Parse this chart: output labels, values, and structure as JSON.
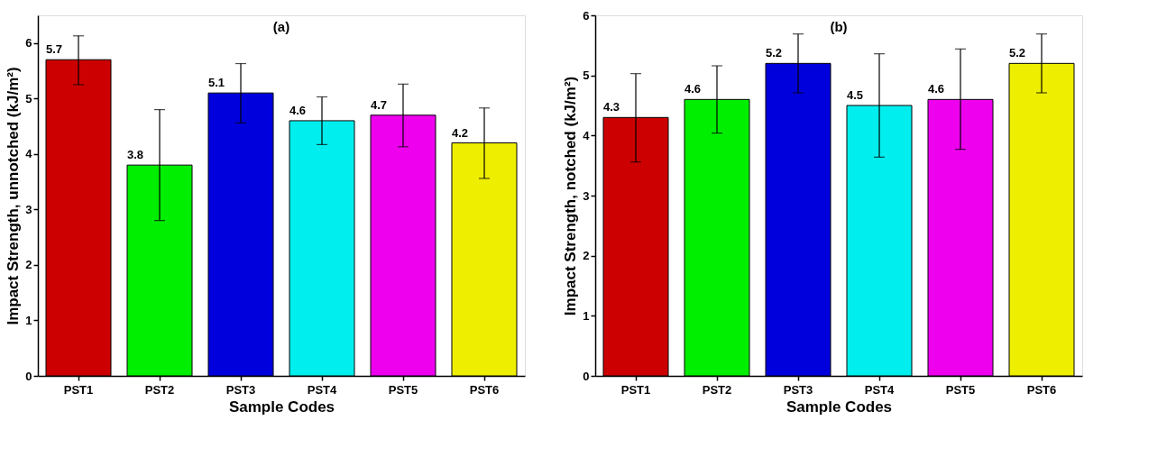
{
  "chart_data": [
    {
      "type": "bar",
      "title": "(a)",
      "xlabel": "Sample Codes",
      "ylabel": "Impact Strength, unnotched (kJ/m²)",
      "categories": [
        "PST1",
        "PST2",
        "PST3",
        "PST4",
        "PST5",
        "PST6"
      ],
      "values": [
        5.7,
        3.8,
        5.1,
        4.6,
        4.7,
        4.2
      ],
      "errors": [
        [
          5.25,
          6.13
        ],
        [
          2.8,
          4.8
        ],
        [
          4.56,
          5.63
        ],
        [
          4.17,
          5.03
        ],
        [
          4.13,
          5.26
        ],
        [
          3.56,
          4.83
        ]
      ],
      "colors": [
        "#cc0000",
        "#00ee00",
        "#0000dd",
        "#00eeee",
        "#ee00ee",
        "#eeee00"
      ],
      "ylim": [
        0,
        6.5
      ],
      "yticks": [
        0,
        1,
        2,
        3,
        4,
        5,
        6
      ],
      "data_labels": true,
      "grid": false,
      "legend": false
    },
    {
      "type": "bar",
      "title": "(b)",
      "xlabel": "Sample Codes",
      "ylabel": "Impact Strength, notched (kJ/m²)",
      "categories": [
        "PST1",
        "PST2",
        "PST3",
        "PST4",
        "PST5",
        "PST6"
      ],
      "values": [
        4.3,
        4.6,
        5.2,
        4.5,
        4.6,
        5.2
      ],
      "errors": [
        [
          3.56,
          5.03
        ],
        [
          4.04,
          5.16
        ],
        [
          4.71,
          5.69
        ],
        [
          3.64,
          5.36
        ],
        [
          3.77,
          5.44
        ],
        [
          4.71,
          5.69
        ]
      ],
      "colors": [
        "#cc0000",
        "#00ee00",
        "#0000dd",
        "#00eeee",
        "#ee00ee",
        "#eeee00"
      ],
      "ylim": [
        0,
        6
      ],
      "yticks": [
        0,
        1,
        2,
        3,
        4,
        5,
        6
      ],
      "data_labels": true,
      "grid": false,
      "legend": false
    }
  ]
}
